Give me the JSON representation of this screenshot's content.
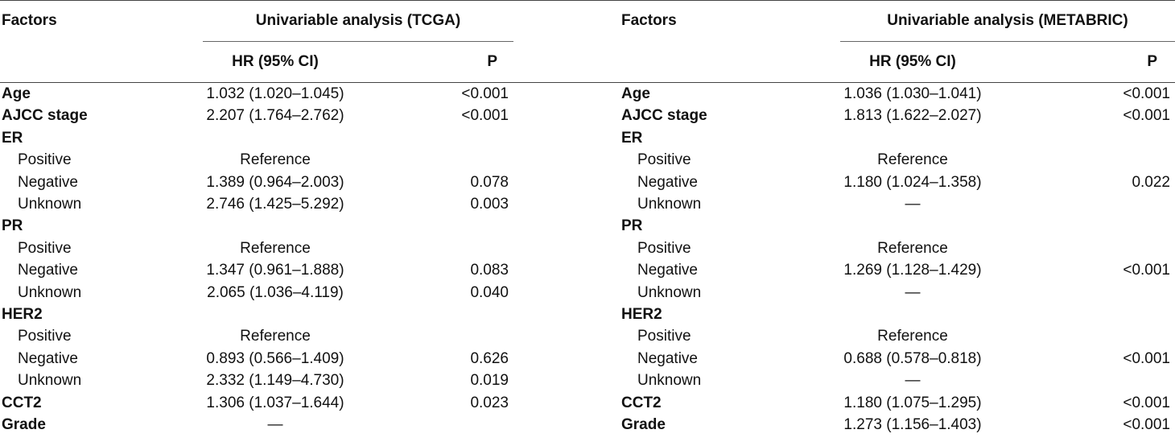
{
  "headers": {
    "factors_left": "Factors",
    "group_left": "Univariable analysis (TCGA)",
    "factors_right": "Factors",
    "group_right": "Univariable analysis (METABRIC)",
    "hr_left": "HR (95% CI)",
    "p_left": "P",
    "hr_right": "HR (95% CI)",
    "p_right": "P"
  },
  "rows": [
    {
      "factor": "Age",
      "bold": true,
      "tcga_hr": "1.032 (1.020–1.045)",
      "tcga_p": "<0.001",
      "meta_hr": "1.036 (1.030–1.041)",
      "meta_p": "<0.001"
    },
    {
      "factor": "AJCC stage",
      "bold": true,
      "tcga_hr": "2.207 (1.764–2.762)",
      "tcga_p": "<0.001",
      "meta_hr": "1.813 (1.622–2.027)",
      "meta_p": "<0.001"
    },
    {
      "factor": "ER",
      "bold": true,
      "tcga_hr": "",
      "tcga_p": "",
      "meta_hr": "",
      "meta_p": ""
    },
    {
      "factor": "Positive",
      "bold": false,
      "tcga_hr": "Reference",
      "tcga_p": "",
      "meta_hr": "Reference",
      "meta_p": ""
    },
    {
      "factor": "Negative",
      "bold": false,
      "tcga_hr": "1.389 (0.964–2.003)",
      "tcga_p": "0.078",
      "meta_hr": "1.180 (1.024–1.358)",
      "meta_p": "0.022"
    },
    {
      "factor": "Unknown",
      "bold": false,
      "tcga_hr": "2.746 (1.425–5.292)",
      "tcga_p": "0.003",
      "meta_hr": "—",
      "meta_p": ""
    },
    {
      "factor": "PR",
      "bold": true,
      "tcga_hr": "",
      "tcga_p": "",
      "meta_hr": "",
      "meta_p": ""
    },
    {
      "factor": "Positive",
      "bold": false,
      "tcga_hr": "Reference",
      "tcga_p": "",
      "meta_hr": "Reference",
      "meta_p": ""
    },
    {
      "factor": "Negative",
      "bold": false,
      "tcga_hr": "1.347 (0.961–1.888)",
      "tcga_p": "0.083",
      "meta_hr": "1.269 (1.128–1.429)",
      "meta_p": "<0.001"
    },
    {
      "factor": "Unknown",
      "bold": false,
      "tcga_hr": "2.065 (1.036–4.119)",
      "tcga_p": "0.040",
      "meta_hr": "—",
      "meta_p": ""
    },
    {
      "factor": "HER2",
      "bold": true,
      "tcga_hr": "",
      "tcga_p": "",
      "meta_hr": "",
      "meta_p": ""
    },
    {
      "factor": "Positive",
      "bold": false,
      "tcga_hr": "Reference",
      "tcga_p": "",
      "meta_hr": "Reference",
      "meta_p": ""
    },
    {
      "factor": "Negative",
      "bold": false,
      "tcga_hr": "0.893 (0.566–1.409)",
      "tcga_p": "0.626",
      "meta_hr": "0.688 (0.578–0.818)",
      "meta_p": "<0.001"
    },
    {
      "factor": "Unknown",
      "bold": false,
      "tcga_hr": "2.332 (1.149–4.730)",
      "tcga_p": "0.019",
      "meta_hr": "—",
      "meta_p": ""
    },
    {
      "factor": "CCT2",
      "bold": true,
      "tcga_hr": "1.306 (1.037–1.644)",
      "tcga_p": "0.023",
      "meta_hr": "1.180 (1.075–1.295)",
      "meta_p": "<0.001"
    },
    {
      "factor": "Grade",
      "bold": true,
      "tcga_hr": "—",
      "tcga_p": "",
      "meta_hr": "1.273 (1.156–1.403)",
      "meta_p": "<0.001"
    }
  ]
}
